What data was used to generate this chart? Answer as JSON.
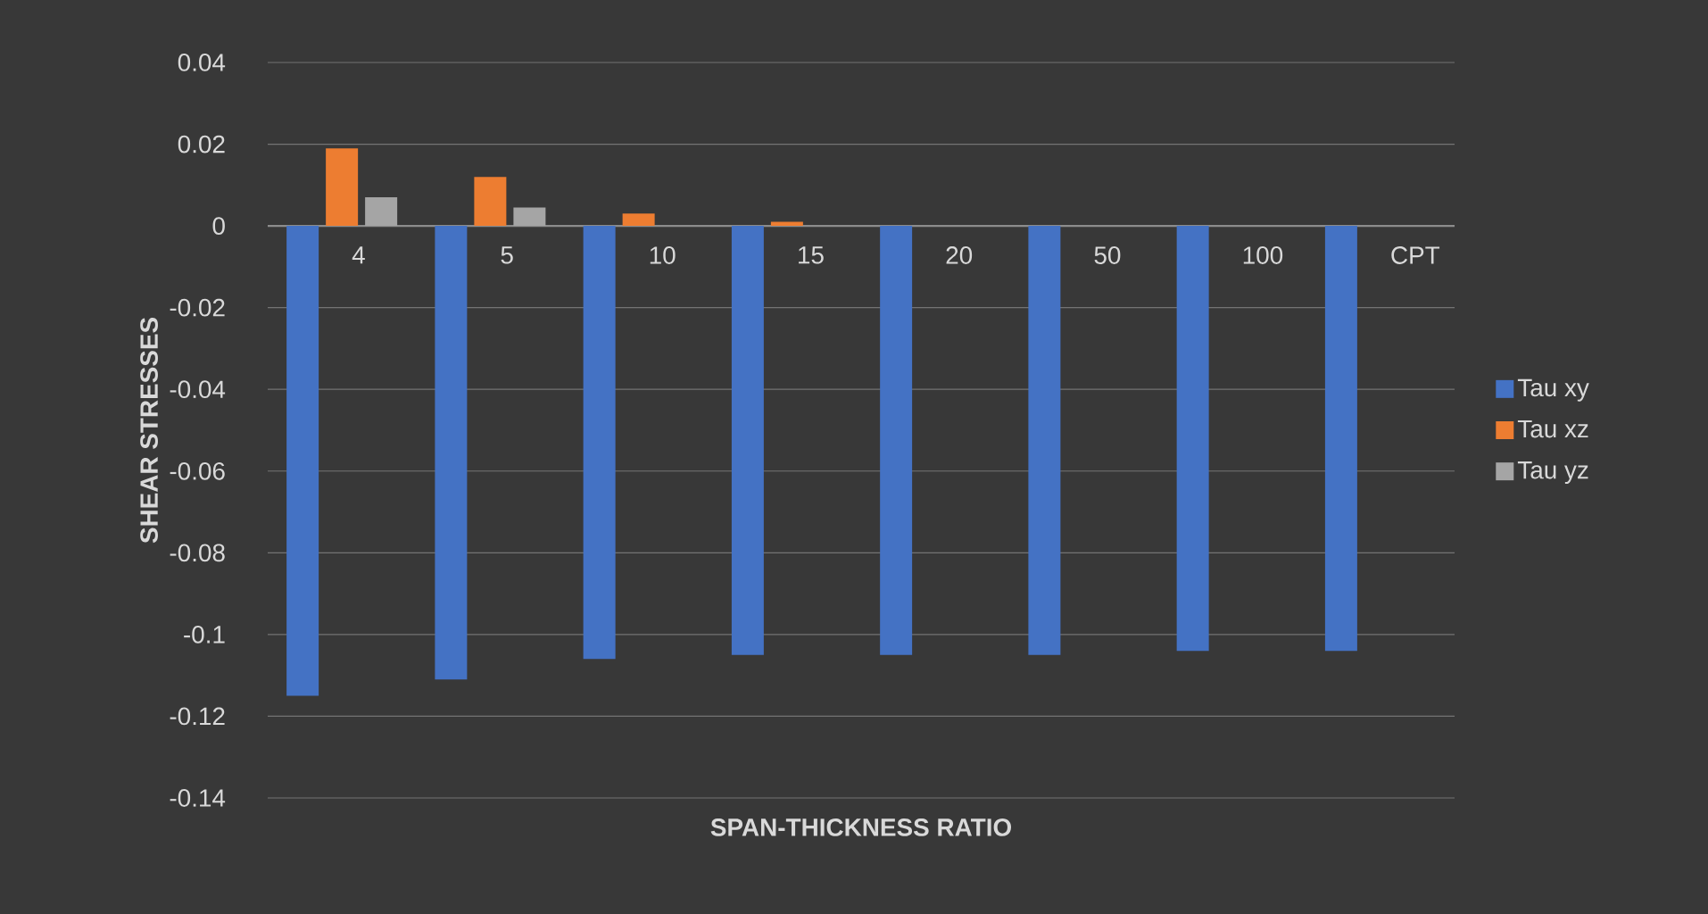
{
  "chart_data": {
    "type": "bar",
    "xlabel": "SPAN-THICKNESS RATIO",
    "ylabel": "SHEAR STRESSES",
    "categories": [
      "4",
      "5",
      "10",
      "15",
      "20",
      "50",
      "100",
      "CPT"
    ],
    "series": [
      {
        "name": "Tau xy",
        "color": "#4472c4",
        "values": [
          -0.115,
          -0.111,
          -0.106,
          -0.105,
          -0.105,
          -0.105,
          -0.104,
          -0.104
        ]
      },
      {
        "name": "Tau xz",
        "color": "#ed7d31",
        "values": [
          0.019,
          0.012,
          0.003,
          0.001,
          0,
          0,
          0,
          0
        ]
      },
      {
        "name": "Tau yz",
        "color": "#a5a5a5",
        "values": [
          0.007,
          0.0045,
          0,
          0,
          0,
          0,
          0,
          0
        ]
      }
    ],
    "ylim": [
      -0.14,
      0.04
    ],
    "yticks": [
      -0.14,
      -0.12,
      -0.1,
      -0.08,
      -0.06,
      -0.04,
      -0.02,
      0,
      0.02,
      0.04
    ],
    "grid": "y",
    "legend": "right"
  }
}
